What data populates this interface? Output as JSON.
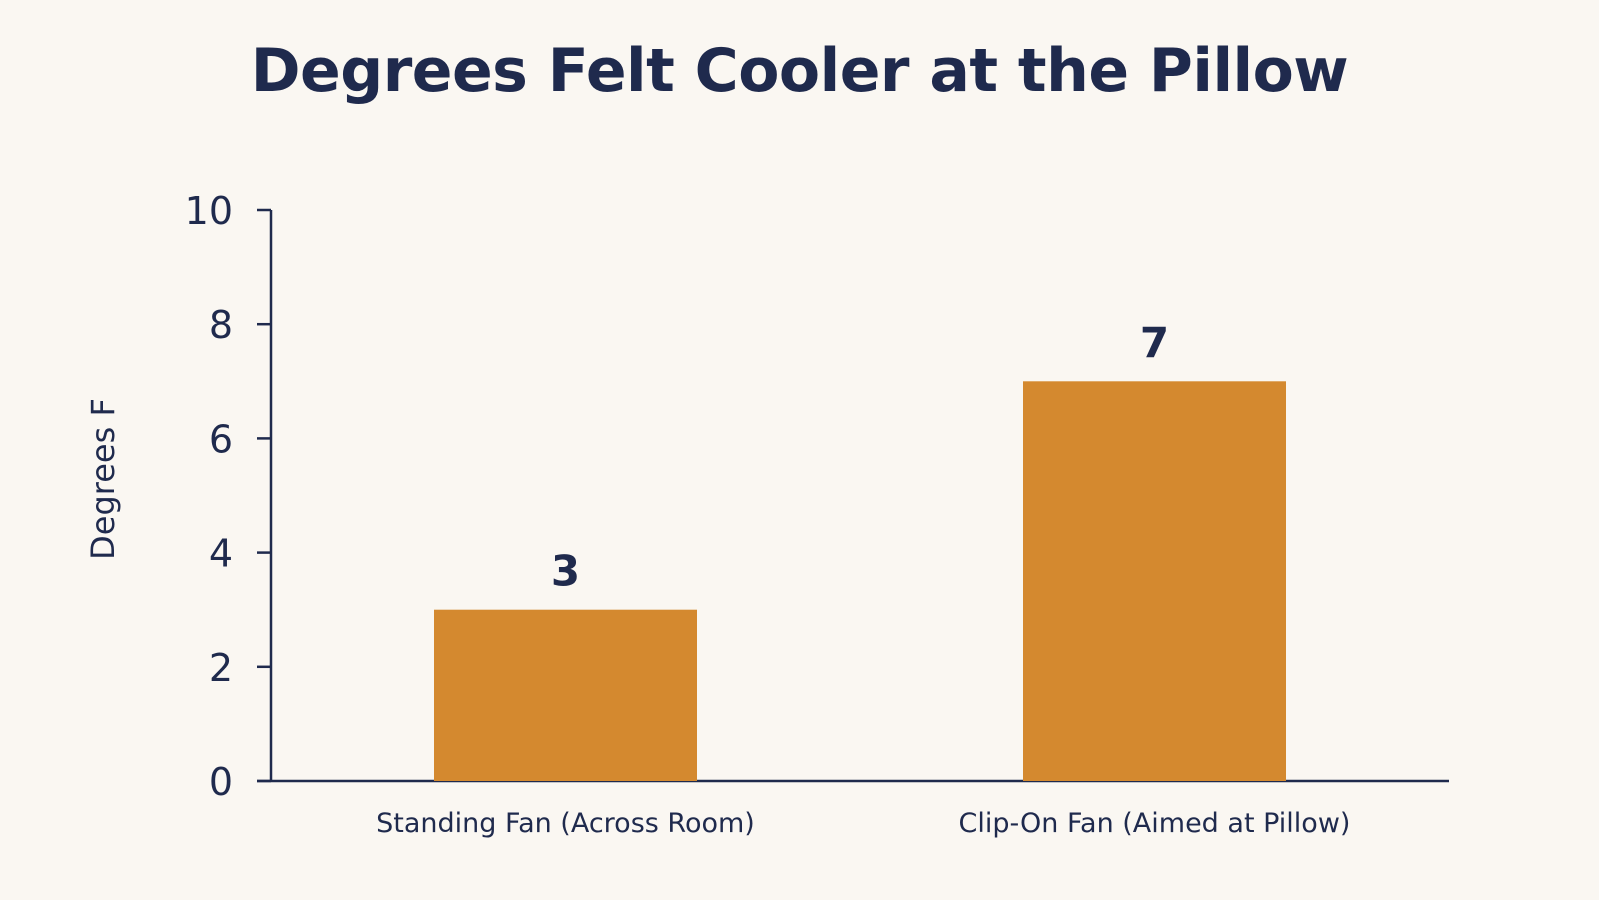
{
  "chart_data": {
    "type": "bar",
    "title": "Degrees Felt Cooler at the Pillow",
    "xlabel": "",
    "ylabel": "Degrees F",
    "categories": [
      "Standing Fan (Across Room)",
      "Clip-On Fan (Aimed at Pillow)"
    ],
    "values": [
      3,
      7
    ],
    "data_labels": [
      "3",
      "7"
    ],
    "ylim": [
      0,
      10
    ],
    "yticks": [
      0,
      2,
      4,
      6,
      8,
      10
    ],
    "grid": false,
    "legend": "none",
    "colors": {
      "bar": "#d4892f",
      "text": "#1f2a4d",
      "axis": "#1f2a4d",
      "background": "#faf7f2"
    }
  }
}
